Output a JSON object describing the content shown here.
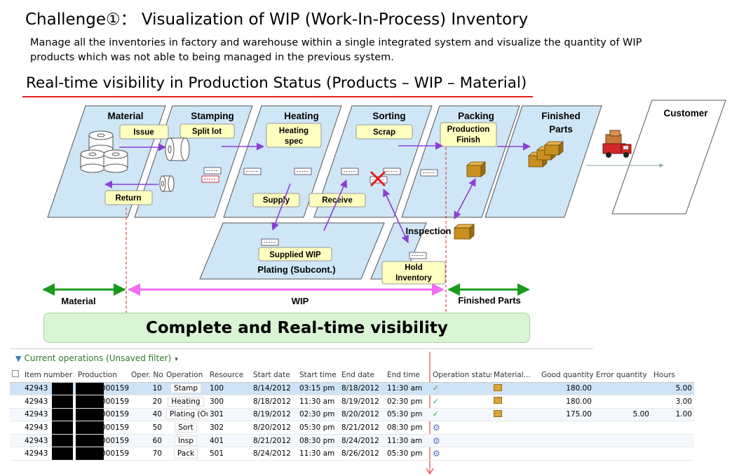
{
  "header": {
    "title": "Challenge①： Visualization of WIP (Work-In-Process) Inventory",
    "description": "Manage all the inventories in factory and warehouse within a single integrated system and visualize the quantity of WIP products which was not able to being managed in the previous system.",
    "subtitle": "Real-time visibility in Production Status (Products – WIP – Material)"
  },
  "diagram": {
    "stages": {
      "material": "Material",
      "stamping": "Stamping",
      "heating": "Heating",
      "sorting": "Sorting",
      "packing": "Packing",
      "finished_1": "Finished",
      "finished_2": "Parts",
      "customer": "Customer"
    },
    "labels": {
      "issue": "Issue",
      "split_lot": "Split lot",
      "heating_spec_1": "Heating",
      "heating_spec_2": "spec",
      "scrap": "Scrap",
      "production_finish_1": "Production",
      "production_finish_2": "Finish",
      "return": "Return",
      "supply": "Supply",
      "receive": "Receive",
      "supplied_wip": "Supplied WIP",
      "plating": "Plating (Subcont.)",
      "inspection": "Inspection",
      "hold_1": "Hold",
      "hold_2": "Inventory"
    },
    "ranges": {
      "material": "Material",
      "wip": "WIP",
      "finished": "Finished Parts"
    },
    "banner": "Complete and Real-time visibility",
    "colors": {
      "zone_fill": "#cfe6f7",
      "label_fill": "#ffffc0",
      "flow_arrow": "#8b3fd6",
      "range_green": "#1a9a1a",
      "range_pink": "#f06cf0",
      "red_line": "#e02020"
    }
  },
  "grid": {
    "filter_label": "Current operations (Unsaved filter)",
    "columns": [
      "Item number",
      "Production",
      "Oper. No.",
      "Operation",
      "Resource",
      "Start date",
      "Start time",
      "End date",
      "End time",
      "Operation status",
      "Material...",
      "Good quantity",
      "Error quantity",
      "Hours"
    ],
    "rows": [
      {
        "item": "42943",
        "production": "000159",
        "oper_no": "10",
        "operation": "Stamp",
        "resource": "100",
        "start_date": "8/14/2012",
        "start_time": "03:15 pm",
        "end_date": "8/18/2012",
        "end_time": "11:30 am",
        "status": "check-icon",
        "material": "box-icon",
        "good": "180.00",
        "error": "",
        "hours": "5.00"
      },
      {
        "item": "42943",
        "production": "000159",
        "oper_no": "20",
        "operation": "Heating",
        "resource": "300",
        "start_date": "8/18/2012",
        "start_time": "11:30 am",
        "end_date": "8/19/2012",
        "end_time": "02:30 pm",
        "status": "check-icon",
        "material": "box-icon",
        "good": "180.00",
        "error": "",
        "hours": "3.00"
      },
      {
        "item": "42943",
        "production": "000159",
        "oper_no": "40",
        "operation": "Plating (Out)",
        "resource": "301",
        "start_date": "8/19/2012",
        "start_time": "02:30 pm",
        "end_date": "8/20/2012",
        "end_time": "05:30 pm",
        "status": "check-icon",
        "material": "box-icon",
        "good": "175.00",
        "error": "5.00",
        "hours": "1.00"
      },
      {
        "item": "42943",
        "production": "000159",
        "oper_no": "50",
        "operation": "Sort",
        "resource": "302",
        "start_date": "8/20/2012",
        "start_time": "05:30 pm",
        "end_date": "8/21/2012",
        "end_time": "08:30 pm",
        "status": "gear-icon",
        "material": "",
        "good": "",
        "error": "",
        "hours": ""
      },
      {
        "item": "42943",
        "production": "000159",
        "oper_no": "60",
        "operation": "Insp",
        "resource": "401",
        "start_date": "8/21/2012",
        "start_time": "08:30 pm",
        "end_date": "8/24/2012",
        "end_time": "11:30 am",
        "status": "gear-icon",
        "material": "",
        "good": "",
        "error": "",
        "hours": ""
      },
      {
        "item": "42943",
        "production": "000159",
        "oper_no": "70",
        "operation": "Pack",
        "resource": "501",
        "start_date": "8/24/2012",
        "start_time": "11:30 am",
        "end_date": "8/26/2012",
        "end_time": "05:30 pm",
        "status": "gear-icon",
        "material": "",
        "good": "",
        "error": "",
        "hours": ""
      }
    ]
  }
}
